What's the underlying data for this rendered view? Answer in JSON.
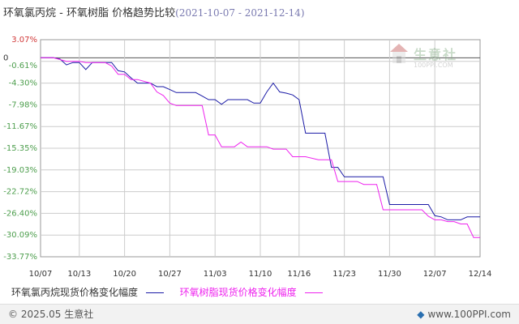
{
  "header": {
    "title_series_a": "环氧氯丙烷",
    "title_sep": " - ",
    "title_series_b": "环氧树脂",
    "title_suffix": "  价格趋势比较",
    "date_range": "(2021-10-07 - 2021-12-14)"
  },
  "watermark": {
    "name": "生意社",
    "url": "100PPI.COM"
  },
  "footer": {
    "copyright": "© 2025.05 生意社",
    "site": "www.100PPI.com"
  },
  "colors": {
    "series_a": "#1a1aa6",
    "series_b": "#ee22ee",
    "grid": "#cccccc",
    "axis_label_green": "#4d9e4d",
    "axis_label_red": "#d13a3a"
  },
  "chart_data": {
    "type": "line",
    "title": "环氧氯丙烷 - 环氧树脂  价格趋势比较(2021-10-07 - 2021-12-14)",
    "xlabel": "",
    "ylabel": "",
    "ylim": [
      -33.77,
      3.07
    ],
    "yticks": [
      "3.07%",
      "0",
      "-0.61%",
      "-4.30%",
      "-7.98%",
      "-11.67%",
      "-15.35%",
      "-19.03%",
      "-22.72%",
      "-26.40%",
      "-30.09%",
      "-33.77%"
    ],
    "ytick_values": [
      3.07,
      0,
      -0.61,
      -4.3,
      -7.98,
      -11.67,
      -15.35,
      -19.03,
      -22.72,
      -26.4,
      -30.09,
      -33.77
    ],
    "xlim": [
      "2021-10-07",
      "2021-12-14"
    ],
    "xticks": [
      {
        "date": "2021-10-07",
        "label": "10/07"
      },
      {
        "date": "2021-10-13",
        "label": "10/13"
      },
      {
        "date": "2021-10-20",
        "label": "10/20"
      },
      {
        "date": "2021-10-27",
        "label": "10/27"
      },
      {
        "date": "2021-11-03",
        "label": "11/03"
      },
      {
        "date": "2021-11-10",
        "label": "11/10"
      },
      {
        "date": "2021-11-16",
        "label": "11/16"
      },
      {
        "date": "2021-11-23",
        "label": "11/23"
      },
      {
        "date": "2021-11-30",
        "label": "11/30"
      },
      {
        "date": "2021-12-07",
        "label": "12/07"
      },
      {
        "date": "2021-12-14",
        "label": "12/14"
      }
    ],
    "grid": true,
    "legend_position": "bottom",
    "series": [
      {
        "name": "环氧氯丙烷现货价格变化幅度",
        "points": [
          [
            "2021-10-07",
            0
          ],
          [
            "2021-10-09",
            0
          ],
          [
            "2021-10-10",
            -0.2
          ],
          [
            "2021-10-11",
            -1.2
          ],
          [
            "2021-10-12",
            -0.8
          ],
          [
            "2021-10-13",
            -0.8
          ],
          [
            "2021-10-14",
            -2.0
          ],
          [
            "2021-10-15",
            -0.8
          ],
          [
            "2021-10-16",
            -0.8
          ],
          [
            "2021-10-17",
            -0.8
          ],
          [
            "2021-10-18",
            -0.8
          ],
          [
            "2021-10-19",
            -2.2
          ],
          [
            "2021-10-20",
            -2.4
          ],
          [
            "2021-10-21",
            -3.4
          ],
          [
            "2021-10-22",
            -4.3
          ],
          [
            "2021-10-24",
            -4.3
          ],
          [
            "2021-10-25",
            -4.9
          ],
          [
            "2021-10-26",
            -4.9
          ],
          [
            "2021-10-27",
            -5.4
          ],
          [
            "2021-10-28",
            -5.9
          ],
          [
            "2021-10-31",
            -5.9
          ],
          [
            "2021-11-01",
            -6.5
          ],
          [
            "2021-11-02",
            -7.1
          ],
          [
            "2021-11-03",
            -7.1
          ],
          [
            "2021-11-04",
            -7.9
          ],
          [
            "2021-11-05",
            -7.1
          ],
          [
            "2021-11-06",
            -7.1
          ],
          [
            "2021-11-07",
            -7.1
          ],
          [
            "2021-11-08",
            -7.1
          ],
          [
            "2021-11-09",
            -7.7
          ],
          [
            "2021-11-10",
            -7.7
          ],
          [
            "2021-11-11",
            -5.8
          ],
          [
            "2021-11-12",
            -4.3
          ],
          [
            "2021-11-13",
            -5.8
          ],
          [
            "2021-11-14",
            -6.0
          ],
          [
            "2021-11-15",
            -6.3
          ],
          [
            "2021-11-16",
            -7.1
          ],
          [
            "2021-11-17",
            -12.8
          ],
          [
            "2021-11-19",
            -12.8
          ],
          [
            "2021-11-20",
            -12.8
          ],
          [
            "2021-11-21",
            -18.6
          ],
          [
            "2021-11-22",
            -18.6
          ],
          [
            "2021-11-23",
            -20.2
          ],
          [
            "2021-11-29",
            -20.2
          ],
          [
            "2021-11-30",
            -24.9
          ],
          [
            "2021-12-06",
            -24.9
          ],
          [
            "2021-12-07",
            -26.8
          ],
          [
            "2021-12-08",
            -27.0
          ],
          [
            "2021-12-09",
            -27.5
          ],
          [
            "2021-12-10",
            -27.5
          ],
          [
            "2021-12-11",
            -27.5
          ],
          [
            "2021-12-12",
            -27.0
          ],
          [
            "2021-12-14",
            -27.0
          ]
        ]
      },
      {
        "name": "环氧树脂现货价格变化幅度",
        "points": [
          [
            "2021-10-07",
            0
          ],
          [
            "2021-10-09",
            0
          ],
          [
            "2021-10-10",
            -0.3
          ],
          [
            "2021-10-11",
            -0.6
          ],
          [
            "2021-10-12",
            -0.6
          ],
          [
            "2021-10-13",
            -0.6
          ],
          [
            "2021-10-14",
            -0.8
          ],
          [
            "2021-10-15",
            -0.8
          ],
          [
            "2021-10-16",
            -0.8
          ],
          [
            "2021-10-17",
            -0.8
          ],
          [
            "2021-10-18",
            -1.4
          ],
          [
            "2021-10-19",
            -2.8
          ],
          [
            "2021-10-20",
            -2.8
          ],
          [
            "2021-10-21",
            -3.7
          ],
          [
            "2021-10-22",
            -3.7
          ],
          [
            "2021-10-24",
            -4.3
          ],
          [
            "2021-10-25",
            -5.8
          ],
          [
            "2021-10-26",
            -6.4
          ],
          [
            "2021-10-27",
            -7.7
          ],
          [
            "2021-10-28",
            -8.1
          ],
          [
            "2021-10-31",
            -8.1
          ],
          [
            "2021-11-01",
            -8.1
          ],
          [
            "2021-11-02",
            -13.1
          ],
          [
            "2021-11-03",
            -13.1
          ],
          [
            "2021-11-04",
            -15.1
          ],
          [
            "2021-11-05",
            -15.1
          ],
          [
            "2021-11-06",
            -15.1
          ],
          [
            "2021-11-07",
            -14.3
          ],
          [
            "2021-11-08",
            -15.1
          ],
          [
            "2021-11-09",
            -15.1
          ],
          [
            "2021-11-10",
            -15.1
          ],
          [
            "2021-11-11",
            -15.1
          ],
          [
            "2021-11-12",
            -15.5
          ],
          [
            "2021-11-13",
            -15.5
          ],
          [
            "2021-11-14",
            -15.5
          ],
          [
            "2021-11-15",
            -16.8
          ],
          [
            "2021-11-16",
            -16.8
          ],
          [
            "2021-11-17",
            -16.8
          ],
          [
            "2021-11-19",
            -17.3
          ],
          [
            "2021-11-20",
            -17.3
          ],
          [
            "2021-11-21",
            -17.3
          ],
          [
            "2021-11-22",
            -21.0
          ],
          [
            "2021-11-23",
            -21.0
          ],
          [
            "2021-11-25",
            -21.0
          ],
          [
            "2021-11-26",
            -21.5
          ],
          [
            "2021-11-28",
            -21.5
          ],
          [
            "2021-11-29",
            -25.8
          ],
          [
            "2021-12-05",
            -25.8
          ],
          [
            "2021-12-06",
            -26.9
          ],
          [
            "2021-12-07",
            -27.5
          ],
          [
            "2021-12-08",
            -27.5
          ],
          [
            "2021-12-09",
            -27.8
          ],
          [
            "2021-12-10",
            -27.8
          ],
          [
            "2021-12-11",
            -28.2
          ],
          [
            "2021-12-12",
            -28.2
          ],
          [
            "2021-12-13",
            -30.5
          ],
          [
            "2021-12-14",
            -30.5
          ]
        ]
      }
    ]
  }
}
